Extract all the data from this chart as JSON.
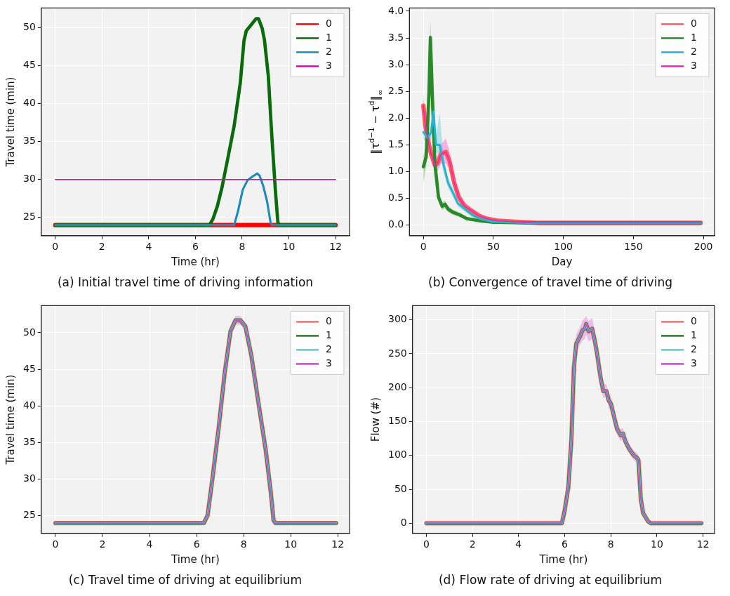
{
  "chart_data": [
    {
      "type": "line",
      "title": "(a) Initial travel time of driving information",
      "xlabel": "Time (hr)",
      "ylabel": "Travel time (min)",
      "xlim": [
        -0.6,
        12.6
      ],
      "xticks": [
        0,
        2,
        4,
        6,
        8,
        10,
        12
      ],
      "ylim": [
        22.6,
        52.6
      ],
      "yticks": [
        25,
        30,
        35,
        40,
        45,
        50
      ],
      "grid": true,
      "legend": "top right",
      "series": [
        {
          "name": "0",
          "color": "#ff0000",
          "x": [
            0,
            12
          ],
          "values": [
            24,
            24
          ]
        },
        {
          "name": "1",
          "color": "#0a6b0a",
          "x": [
            0,
            6.6,
            6.75,
            6.94,
            7.14,
            7.4,
            7.66,
            7.92,
            8.08,
            8.18,
            8.39,
            8.6,
            8.7,
            8.86,
            8.96,
            9.12,
            9.27,
            9.43,
            9.53,
            9.58,
            12
          ],
          "values": [
            24,
            24,
            24.8,
            26.5,
            29,
            33,
            37.1,
            42.7,
            48.3,
            49.6,
            50.4,
            51.2,
            51.2,
            49.9,
            48.3,
            43.7,
            35.8,
            28.3,
            24.4,
            24,
            24
          ]
        },
        {
          "name": "2",
          "color": "#1a8cb8",
          "x": [
            0,
            7.66,
            7.82,
            8.03,
            8.23,
            8.44,
            8.65,
            8.75,
            8.91,
            9.07,
            9.22,
            9.27,
            12
          ],
          "values": [
            24,
            24,
            25.8,
            28.7,
            29.9,
            30.4,
            30.8,
            30.5,
            29.1,
            27.1,
            24.3,
            24,
            24
          ]
        },
        {
          "name": "3",
          "color": "#e600b8",
          "x": [
            0,
            12
          ],
          "values": [
            30,
            30
          ]
        }
      ]
    },
    {
      "type": "line",
      "title": "(b) Convergence of travel time of driving",
      "xlabel": "Day",
      "ylabel": "‖τ$^{d−1}$ − τ$^{d}$‖$_{∞}$",
      "xlim": [
        -10,
        208
      ],
      "xticks": [
        0,
        50,
        100,
        150,
        200
      ],
      "ylim": [
        -0.2,
        4.06
      ],
      "yticks": [
        {
          "value": 0,
          "label": "0.0"
        },
        {
          "value": 0.5,
          "label": "0.5"
        },
        {
          "value": 1,
          "label": "1.0"
        },
        {
          "value": 1.5,
          "label": "1.5"
        },
        {
          "value": 2,
          "label": "2.0"
        },
        {
          "value": 2.5,
          "label": "2.5"
        },
        {
          "value": 3,
          "label": "3.0"
        },
        {
          "value": 3.5,
          "label": "3.5"
        },
        {
          "value": 4,
          "label": "4.0"
        }
      ],
      "grid": true,
      "legend": "top right",
      "series": [
        {
          "name": "0",
          "color": "#ff5a5a",
          "x": [
            0,
            1.4,
            4,
            5.6,
            8.2,
            10,
            12.5,
            16,
            18.5,
            22,
            25.3,
            29.6,
            34.8,
            40,
            45,
            53.6,
            65.6,
            82.7,
            100,
            125,
            150,
            175,
            198
          ],
          "values": [
            2.23,
            1.86,
            1.5,
            1.32,
            1.12,
            1.15,
            1.32,
            1.37,
            1.21,
            0.79,
            0.52,
            0.35,
            0.26,
            0.17,
            0.12,
            0.08,
            0.06,
            0.04,
            0.04,
            0.04,
            0.04,
            0.04,
            0.04
          ]
        },
        {
          "name": "1",
          "color": "#2a8a2a",
          "x": [
            0,
            2,
            4,
            5,
            6.3,
            8.2,
            10.8,
            13.4,
            15.4,
            17.6,
            21,
            26,
            31,
            40,
            50,
            74,
            100,
            125,
            150,
            175,
            198
          ],
          "values": [
            1.09,
            1.28,
            2.48,
            3.51,
            2.48,
            1.15,
            0.52,
            0.35,
            0.39,
            0.3,
            0.24,
            0.19,
            0.12,
            0.08,
            0.05,
            0.04,
            0.04,
            0.04,
            0.04,
            0.04,
            0.04
          ],
          "lower": [
            0.8,
            1.1,
            2.2,
            3.2,
            2.2,
            1,
            0.45,
            0.28,
            0.32,
            0.24,
            0.19,
            0.15,
            0.09,
            0.06,
            0.03,
            0.03,
            0.03,
            0.03,
            0.03,
            0.03,
            0.03
          ],
          "upper": [
            1.3,
            1.5,
            2.8,
            3.85,
            2.8,
            1.3,
            0.6,
            0.42,
            0.46,
            0.36,
            0.29,
            0.23,
            0.15,
            0.1,
            0.07,
            0.05,
            0.06,
            0.06,
            0.06,
            0.07,
            0.06
          ]
        },
        {
          "name": "2",
          "color": "#26b5d0",
          "x": [
            0,
            3,
            5.6,
            7.2,
            9,
            11.6,
            14.2,
            17.6,
            21,
            24.5,
            29.6,
            34.8,
            40,
            50,
            74,
            100,
            125,
            150,
            175,
            198
          ],
          "values": [
            1.74,
            1.63,
            1.74,
            2.12,
            1.5,
            1.5,
            1.15,
            0.79,
            0.61,
            0.41,
            0.3,
            0.19,
            0.12,
            0.06,
            0.04,
            0.04,
            0.04,
            0.04,
            0.04,
            0.04
          ],
          "lower": [
            1.6,
            1.5,
            1.6,
            1.9,
            1.35,
            1.35,
            1,
            0.7,
            0.53,
            0.35,
            0.25,
            0.15,
            0.09,
            0.04,
            0.03,
            0.03,
            0.03,
            0.03,
            0.03,
            0.03
          ],
          "upper": [
            1.85,
            1.75,
            1.9,
            2.2,
            1.65,
            2.1,
            1.3,
            0.88,
            0.7,
            0.47,
            0.35,
            0.23,
            0.15,
            0.08,
            0.05,
            0.06,
            0.06,
            0.06,
            0.06,
            0.06
          ]
        },
        {
          "name": "3",
          "color": "#f01fc0",
          "x": [
            0,
            1.4,
            4,
            5.6,
            8.2,
            10,
            12.5,
            16,
            18.5,
            22,
            25.3,
            29.6,
            34.8,
            40,
            45,
            53.6,
            65.6,
            82.7,
            100,
            125,
            150,
            175,
            198
          ],
          "values": [
            2.23,
            1.86,
            1.5,
            1.32,
            1.12,
            1.15,
            1.32,
            1.37,
            1.21,
            0.79,
            0.52,
            0.35,
            0.26,
            0.17,
            0.12,
            0.08,
            0.06,
            0.04,
            0.04,
            0.04,
            0.04,
            0.04,
            0.04
          ],
          "lower": [
            2,
            1.7,
            1.35,
            1.2,
            1,
            1,
            1.15,
            1.15,
            1.05,
            0.68,
            0.45,
            0.29,
            0.2,
            0.12,
            0.09,
            0.06,
            0.04,
            0.03,
            0.03,
            0.03,
            0.03,
            0.03,
            0.03
          ],
          "upper": [
            2.45,
            2,
            1.65,
            1.45,
            1.25,
            1.3,
            1.5,
            1.62,
            1.4,
            0.9,
            0.6,
            0.42,
            0.32,
            0.22,
            0.15,
            0.1,
            0.08,
            0.05,
            0.06,
            0.06,
            0.06,
            0.07,
            0.06
          ]
        }
      ]
    },
    {
      "type": "line",
      "title": "(c) Travel time of driving at equilibrium",
      "xlabel": "Time (hr)",
      "ylabel": "Travel time (min)",
      "xlim": [
        -0.6,
        12.5
      ],
      "xticks": [
        0,
        2,
        4,
        6,
        8,
        10,
        12
      ],
      "ylim": [
        22.6,
        53.7
      ],
      "yticks": [
        25,
        30,
        35,
        40,
        45,
        50
      ],
      "grid": true,
      "legend": "top right",
      "x": [
        0,
        6.31,
        6.47,
        6.67,
        6.93,
        7.19,
        7.44,
        7.65,
        7.86,
        8.07,
        8.32,
        8.63,
        8.94,
        9.15,
        9.27,
        9.35,
        11.93
      ],
      "series": [
        {
          "name": "0",
          "color": "#ff6b6b",
          "values": [
            24,
            24,
            25.1,
            30,
            36.8,
            44.4,
            50.2,
            51.7,
            51.7,
            50.9,
            47,
            40.4,
            33.9,
            28.3,
            24.4,
            24,
            24
          ]
        },
        {
          "name": "1",
          "color": "#1f7f1f",
          "values": [
            24,
            24,
            25.1,
            30,
            36.8,
            44.4,
            50.2,
            51.7,
            51.7,
            50.9,
            47,
            40.4,
            33.9,
            28.3,
            24.4,
            24,
            24
          ]
        },
        {
          "name": "2",
          "color": "#5fc8d8",
          "values": [
            24,
            24,
            25.1,
            30,
            36.8,
            44.4,
            50.2,
            51.7,
            51.7,
            50.9,
            47,
            40.4,
            33.9,
            28.3,
            24.4,
            24,
            24
          ]
        },
        {
          "name": "3",
          "color": "#d93cd9",
          "values": [
            24,
            24,
            25.1,
            30,
            36.8,
            44.4,
            50.2,
            51.7,
            51.7,
            50.9,
            47,
            40.4,
            33.9,
            28.3,
            24.4,
            24,
            24
          ],
          "lower": [
            24,
            24,
            24.9,
            29.7,
            36.4,
            43.9,
            49.6,
            51.1,
            51.1,
            50.4,
            46.6,
            40.1,
            33.7,
            28.1,
            24.3,
            24,
            24
          ],
          "upper": [
            24,
            24,
            25.3,
            30.3,
            37.2,
            44.9,
            50.8,
            52.3,
            52.3,
            51.4,
            47.4,
            40.7,
            34.1,
            28.5,
            24.5,
            24,
            24
          ]
        }
      ]
    },
    {
      "type": "line",
      "title": "(d) Flow rate of driving at equilibrium",
      "xlabel": "Time (hr)",
      "ylabel": "Flow (#)",
      "xlim": [
        -0.6,
        12.5
      ],
      "xticks": [
        0,
        2,
        4,
        6,
        8,
        10,
        12
      ],
      "ylim": [
        -15,
        321
      ],
      "yticks": [
        0,
        50,
        100,
        150,
        200,
        250,
        300
      ],
      "grid": true,
      "legend": "top right",
      "x": [
        0,
        5.88,
        6,
        6.16,
        6.29,
        6.4,
        6.5,
        6.67,
        6.78,
        6.88,
        6.93,
        7.04,
        7.19,
        7.29,
        7.4,
        7.55,
        7.67,
        7.81,
        7.91,
        8.01,
        8.12,
        8.27,
        8.43,
        8.53,
        8.63,
        8.79,
        9,
        9.15,
        9.2,
        9.3,
        9.4,
        9.61,
        9.73,
        11.93
      ],
      "series": [
        {
          "name": "0",
          "color": "#ff6b6b",
          "values": [
            0,
            0,
            19,
            54,
            124,
            230,
            265,
            276,
            285,
            287,
            294,
            283,
            287,
            272,
            251,
            216,
            195,
            195,
            181,
            176,
            160,
            139,
            130,
            132,
            121,
            110,
            100,
            96,
            93,
            36,
            15,
            3,
            0,
            0
          ]
        },
        {
          "name": "1",
          "color": "#1f7f1f",
          "values": [
            0,
            0,
            19,
            54,
            124,
            230,
            265,
            276,
            285,
            287,
            294,
            283,
            287,
            272,
            251,
            216,
            195,
            195,
            181,
            176,
            160,
            139,
            130,
            132,
            121,
            110,
            100,
            96,
            93,
            36,
            15,
            3,
            0,
            0
          ]
        },
        {
          "name": "2",
          "color": "#5fc8d8",
          "values": [
            0,
            0,
            19,
            54,
            124,
            230,
            265,
            276,
            285,
            287,
            294,
            283,
            287,
            272,
            251,
            216,
            195,
            195,
            181,
            176,
            160,
            139,
            130,
            132,
            121,
            110,
            100,
            96,
            93,
            36,
            15,
            3,
            0,
            0
          ]
        },
        {
          "name": "3",
          "color": "#d93cd9",
          "values": [
            0,
            0,
            19,
            54,
            124,
            230,
            265,
            276,
            285,
            287,
            294,
            283,
            287,
            272,
            251,
            216,
            195,
            195,
            181,
            176,
            160,
            139,
            130,
            132,
            121,
            110,
            100,
            96,
            93,
            36,
            15,
            3,
            0,
            0
          ],
          "lower": [
            0,
            0,
            16,
            50,
            116,
            220,
            252,
            264,
            270,
            272,
            278,
            268,
            272,
            262,
            242,
            207,
            185,
            186,
            170,
            165,
            150,
            131,
            121,
            124,
            113,
            103,
            93,
            89,
            86,
            32,
            12,
            1,
            0,
            0
          ],
          "upper": [
            0,
            0,
            21,
            58,
            132,
            240,
            278,
            290,
            300,
            303,
            306,
            298,
            303,
            285,
            262,
            225,
            205,
            205,
            192,
            187,
            170,
            147,
            139,
            140,
            129,
            117,
            107,
            103,
            100,
            40,
            18,
            5,
            0,
            0
          ]
        }
      ]
    }
  ]
}
